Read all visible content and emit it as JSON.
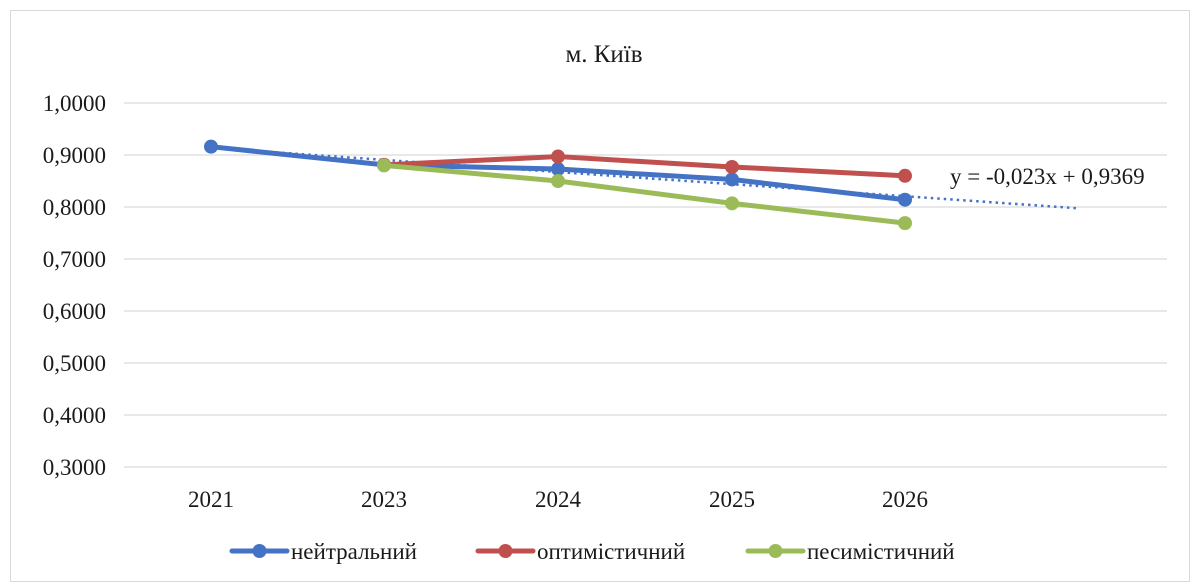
{
  "chart_data": {
    "type": "line",
    "title": "м. Київ",
    "categories": [
      "2021",
      "2023",
      "2024",
      "2025",
      "2026"
    ],
    "y_tick_labels": [
      "1,0000",
      "0,9000",
      "0,8000",
      "0,7000",
      "0,6000",
      "0,5000",
      "0,4000",
      "0,3000"
    ],
    "ylim": [
      0.3,
      1.0
    ],
    "grid": true,
    "legend_position": "bottom",
    "series": [
      {
        "name": "нейтральний",
        "color": "#4472c4",
        "values": [
          0.916,
          0.881,
          0.873,
          0.853,
          0.814
        ]
      },
      {
        "name": "оптимістичний",
        "color": "#c0504d",
        "values": [
          null,
          0.881,
          0.897,
          0.877,
          0.86
        ]
      },
      {
        "name": "песимістичний",
        "color": "#9bbb59",
        "values": [
          null,
          0.88,
          0.85,
          0.807,
          0.769
        ]
      }
    ],
    "trendline": {
      "series": "нейтральний",
      "style": "dotted",
      "color": "#4472c4",
      "equation_label": "y = -0,023x + 0,9369"
    }
  }
}
